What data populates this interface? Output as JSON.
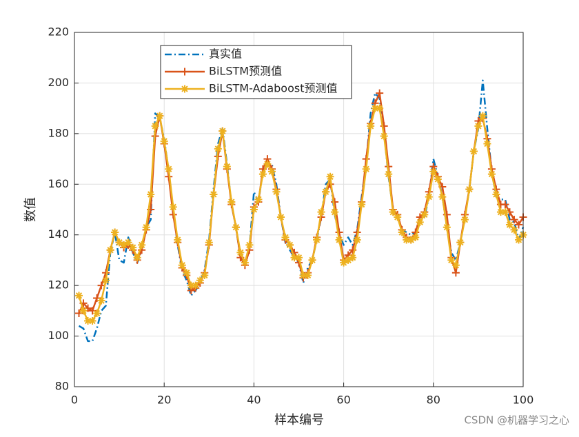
{
  "chart_data": {
    "type": "line",
    "xlabel": "样本编号",
    "ylabel": "数值",
    "xlim": [
      0,
      100
    ],
    "xticks": [
      0,
      20,
      40,
      60,
      80,
      100
    ],
    "ylim": [
      80,
      220
    ],
    "yticks": [
      80,
      100,
      120,
      140,
      160,
      180,
      200,
      220
    ],
    "grid": true,
    "legend_position": "top",
    "x": [
      1,
      2,
      3,
      4,
      5,
      6,
      7,
      8,
      9,
      10,
      11,
      12,
      13,
      14,
      15,
      16,
      17,
      18,
      19,
      20,
      21,
      22,
      23,
      24,
      25,
      26,
      27,
      28,
      29,
      30,
      31,
      32,
      33,
      34,
      35,
      36,
      37,
      38,
      39,
      40,
      41,
      42,
      43,
      44,
      45,
      46,
      47,
      48,
      49,
      50,
      51,
      52,
      53,
      54,
      55,
      56,
      57,
      58,
      59,
      60,
      61,
      62,
      63,
      64,
      65,
      66,
      67,
      68,
      69,
      70,
      71,
      72,
      73,
      74,
      75,
      76,
      77,
      78,
      79,
      80,
      81,
      82,
      83,
      84,
      85,
      86,
      87,
      88,
      89,
      90,
      91,
      92,
      93,
      94,
      95,
      96,
      97,
      98,
      99,
      100
    ],
    "series": [
      {
        "name": "真实值",
        "color": "#0072BD",
        "style": "dashdot",
        "marker": "none",
        "values": [
          104,
          103,
          98,
          98,
          103,
          110,
          112,
          133,
          141,
          130,
          129,
          139,
          133,
          129,
          134,
          143,
          146,
          188,
          186,
          178,
          165,
          150,
          136,
          126,
          122,
          116,
          118,
          121,
          126,
          138,
          158,
          176,
          182,
          168,
          152,
          143,
          131,
          128,
          135,
          157,
          153,
          165,
          168,
          168,
          160,
          147,
          137,
          134,
          131,
          129,
          121,
          127,
          130,
          138,
          147,
          160,
          162,
          148,
          140,
          136,
          139,
          136,
          142,
          155,
          168,
          188,
          196,
          194,
          180,
          163,
          150,
          147,
          142,
          141,
          140,
          141,
          147,
          147,
          155,
          170,
          163,
          155,
          143,
          133,
          130,
          137,
          147,
          158,
          173,
          182,
          201,
          182,
          165,
          155,
          154,
          154,
          146,
          145,
          138,
          143
        ]
      },
      {
        "name": "BiLSTM预测值",
        "color": "#D95319",
        "style": "solid",
        "marker": "plus",
        "values": [
          109,
          113,
          111,
          110,
          115,
          120,
          125,
          134,
          141,
          137,
          135,
          136,
          134,
          130,
          134,
          142,
          150,
          179,
          187,
          176,
          163,
          148,
          137,
          127,
          124,
          118,
          119,
          121,
          125,
          136,
          156,
          171,
          181,
          166,
          152,
          143,
          131,
          128,
          134,
          151,
          153,
          166,
          170,
          166,
          158,
          147,
          138,
          136,
          133,
          129,
          123,
          125,
          130,
          139,
          147,
          157,
          160,
          153,
          141,
          130,
          132,
          134,
          141,
          153,
          170,
          184,
          192,
          196,
          183,
          167,
          150,
          148,
          142,
          139,
          138,
          141,
          147,
          149,
          157,
          167,
          163,
          159,
          148,
          131,
          125,
          137,
          148,
          158,
          173,
          185,
          186,
          178,
          166,
          158,
          152,
          152,
          149,
          146,
          144,
          147
        ]
      },
      {
        "name": "BiLSTM-Adaboost预测值",
        "color": "#EDB120",
        "style": "solid",
        "marker": "asterisk",
        "values": [
          116,
          110,
          106,
          106,
          109,
          114,
          122,
          134,
          141,
          137,
          136,
          137,
          135,
          131,
          136,
          143,
          156,
          183,
          187,
          177,
          166,
          151,
          138,
          128,
          125,
          120,
          120,
          122,
          124,
          137,
          156,
          174,
          181,
          167,
          153,
          143,
          133,
          129,
          136,
          150,
          154,
          164,
          168,
          165,
          157,
          147,
          139,
          136,
          131,
          131,
          124,
          124,
          130,
          138,
          149,
          157,
          163,
          149,
          138,
          129,
          130,
          131,
          138,
          152,
          166,
          183,
          190,
          190,
          179,
          164,
          149,
          147,
          141,
          138,
          138,
          139,
          145,
          148,
          155,
          165,
          162,
          155,
          143,
          130,
          128,
          137,
          146,
          158,
          173,
          183,
          187,
          176,
          164,
          156,
          149,
          149,
          144,
          142,
          138,
          140
        ]
      }
    ]
  },
  "watermark": "CSDN @机器学习之心"
}
